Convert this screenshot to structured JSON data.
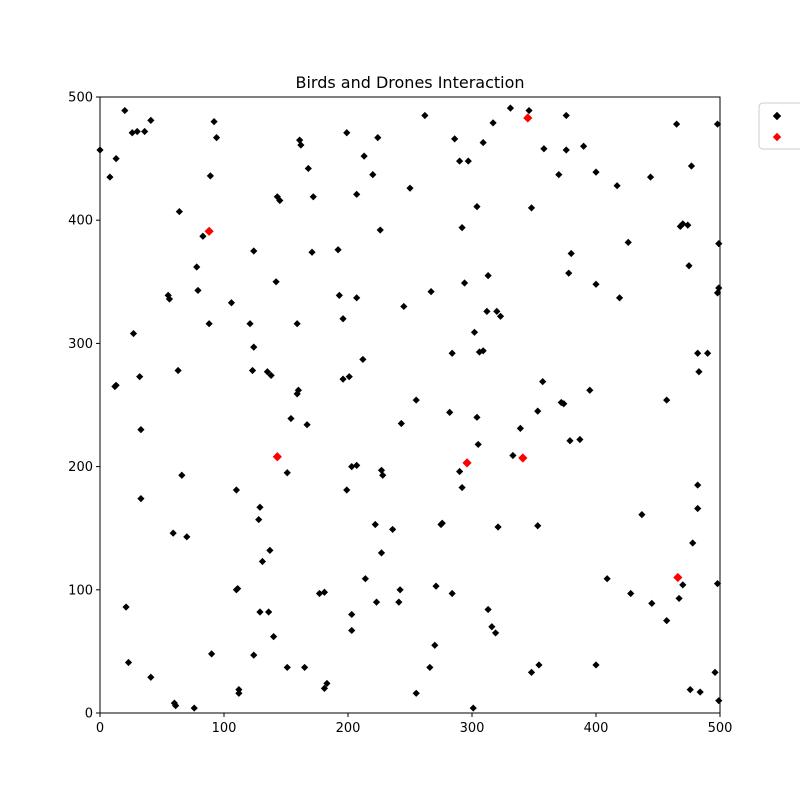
{
  "chart_data": {
    "type": "scatter",
    "title": "Birds and Drones Interaction",
    "xlabel": "",
    "ylabel": "",
    "xlim": [
      0,
      500
    ],
    "ylim": [
      0,
      500
    ],
    "xticks": [
      0,
      100,
      200,
      300,
      400,
      500
    ],
    "yticks": [
      0,
      100,
      200,
      300,
      400,
      500
    ],
    "grid": false,
    "legend_placement": "upper-right-outside",
    "series": [
      {
        "color": "#000000",
        "marker": "diamond",
        "points": [
          [
            0,
            457
          ],
          [
            8,
            435
          ],
          [
            13,
            450
          ],
          [
            20,
            489
          ],
          [
            26,
            471
          ],
          [
            30,
            472
          ],
          [
            36,
            472
          ],
          [
            41,
            481
          ],
          [
            92,
            480
          ],
          [
            94,
            467
          ],
          [
            89,
            436
          ],
          [
            64,
            407
          ],
          [
            55,
            339
          ],
          [
            56,
            336
          ],
          [
            27,
            308
          ],
          [
            32,
            273
          ],
          [
            13,
            266
          ],
          [
            12,
            265
          ],
          [
            33,
            230
          ],
          [
            33,
            174
          ],
          [
            21,
            86
          ],
          [
            23,
            41
          ],
          [
            41,
            29
          ],
          [
            60,
            8
          ],
          [
            61,
            6
          ],
          [
            76,
            4
          ],
          [
            90,
            48
          ],
          [
            112,
            16
          ],
          [
            112,
            19
          ],
          [
            59,
            146
          ],
          [
            70,
            143
          ],
          [
            66,
            193
          ],
          [
            63,
            278
          ],
          [
            88,
            316
          ],
          [
            79,
            343
          ],
          [
            78,
            362
          ],
          [
            83,
            387
          ],
          [
            106,
            333
          ],
          [
            121,
            316
          ],
          [
            124,
            297
          ],
          [
            123,
            278
          ],
          [
            135,
            277
          ],
          [
            138,
            274
          ],
          [
            142,
            350
          ],
          [
            124,
            375
          ],
          [
            143,
            419
          ],
          [
            145,
            416
          ],
          [
            110,
            181
          ],
          [
            129,
            167
          ],
          [
            128,
            157
          ],
          [
            131,
            123
          ],
          [
            137,
            132
          ],
          [
            110,
            100
          ],
          [
            111,
            101
          ],
          [
            124,
            47
          ],
          [
            129,
            82
          ],
          [
            136,
            82
          ],
          [
            140,
            62
          ],
          [
            151,
            37
          ],
          [
            165,
            37
          ],
          [
            183,
            24
          ],
          [
            181,
            20
          ],
          [
            177,
            97
          ],
          [
            181,
            98
          ],
          [
            203,
            80
          ],
          [
            203,
            67
          ],
          [
            161,
            465
          ],
          [
            162,
            461
          ],
          [
            168,
            442
          ],
          [
            172,
            419
          ],
          [
            159,
            316
          ],
          [
            160,
            262
          ],
          [
            159,
            259
          ],
          [
            154,
            239
          ],
          [
            167,
            234
          ],
          [
            151,
            195
          ],
          [
            199,
            471
          ],
          [
            207,
            421
          ],
          [
            213,
            452
          ],
          [
            220,
            437
          ],
          [
            224,
            467
          ],
          [
            226,
            392
          ],
          [
            192,
            376
          ],
          [
            171,
            374
          ],
          [
            193,
            339
          ],
          [
            196,
            320
          ],
          [
            207,
            337
          ],
          [
            212,
            287
          ],
          [
            196,
            271
          ],
          [
            201,
            273
          ],
          [
            203,
            200
          ],
          [
            207,
            201
          ],
          [
            199,
            181
          ],
          [
            227,
            197
          ],
          [
            228,
            193
          ],
          [
            222,
            153
          ],
          [
            227,
            130
          ],
          [
            236,
            149
          ],
          [
            242,
            100
          ],
          [
            241,
            90
          ],
          [
            223,
            90
          ],
          [
            214,
            109
          ],
          [
            262,
            485
          ],
          [
            250,
            426
          ],
          [
            245,
            330
          ],
          [
            267,
            342
          ],
          [
            255,
            254
          ],
          [
            243,
            235
          ],
          [
            286,
            466
          ],
          [
            290,
            448
          ],
          [
            297,
            448
          ],
          [
            309,
            463
          ],
          [
            317,
            479
          ],
          [
            331,
            491
          ],
          [
            346,
            489
          ],
          [
            304,
            411
          ],
          [
            292,
            394
          ],
          [
            294,
            349
          ],
          [
            284,
            292
          ],
          [
            313,
            355
          ],
          [
            312,
            326
          ],
          [
            320,
            326
          ],
          [
            323,
            322
          ],
          [
            302,
            309
          ],
          [
            309,
            294
          ],
          [
            306,
            293
          ],
          [
            282,
            244
          ],
          [
            304,
            240
          ],
          [
            305,
            218
          ],
          [
            290,
            196
          ],
          [
            292,
            183
          ],
          [
            276,
            154
          ],
          [
            275,
            153
          ],
          [
            284,
            97
          ],
          [
            271,
            103
          ],
          [
            266,
            37
          ],
          [
            270,
            55
          ],
          [
            255,
            16
          ],
          [
            301,
            4
          ],
          [
            313,
            84
          ],
          [
            316,
            70
          ],
          [
            319,
            65
          ],
          [
            321,
            151
          ],
          [
            333,
            209
          ],
          [
            339,
            231
          ],
          [
            353,
            245
          ],
          [
            357,
            269
          ],
          [
            353,
            152
          ],
          [
            348,
            33
          ],
          [
            354,
            39
          ],
          [
            358,
            458
          ],
          [
            348,
            410
          ],
          [
            370,
            437
          ],
          [
            376,
            457
          ],
          [
            376,
            485
          ],
          [
            390,
            460
          ],
          [
            400,
            439
          ],
          [
            380,
            373
          ],
          [
            378,
            357
          ],
          [
            400,
            348
          ],
          [
            419,
            337
          ],
          [
            426,
            382
          ],
          [
            417,
            428
          ],
          [
            444,
            435
          ],
          [
            465,
            478
          ],
          [
            477,
            444
          ],
          [
            470,
            397
          ],
          [
            468,
            395
          ],
          [
            474,
            396
          ],
          [
            475,
            363
          ],
          [
            372,
            252
          ],
          [
            374,
            251
          ],
          [
            379,
            221
          ],
          [
            387,
            222
          ],
          [
            395,
            262
          ],
          [
            457,
            254
          ],
          [
            482,
            292
          ],
          [
            490,
            292
          ],
          [
            483,
            277
          ],
          [
            482,
            185
          ],
          [
            482,
            166
          ],
          [
            478,
            138
          ],
          [
            437,
            161
          ],
          [
            409,
            109
          ],
          [
            428,
            97
          ],
          [
            445,
            89
          ],
          [
            457,
            75
          ],
          [
            467,
            93
          ],
          [
            470,
            104
          ],
          [
            476,
            19
          ],
          [
            484,
            17
          ],
          [
            496,
            33
          ],
          [
            499,
            10
          ],
          [
            498,
            105
          ],
          [
            498,
            341
          ],
          [
            499,
            345
          ],
          [
            499,
            381
          ],
          [
            498,
            478
          ],
          [
            400,
            39
          ]
        ]
      },
      {
        "color": "#ff0000",
        "marker": "diamond",
        "points": [
          [
            88,
            391
          ],
          [
            143,
            208
          ],
          [
            296,
            203
          ],
          [
            341,
            207
          ],
          [
            345,
            483
          ],
          [
            466,
            110
          ]
        ]
      }
    ]
  }
}
